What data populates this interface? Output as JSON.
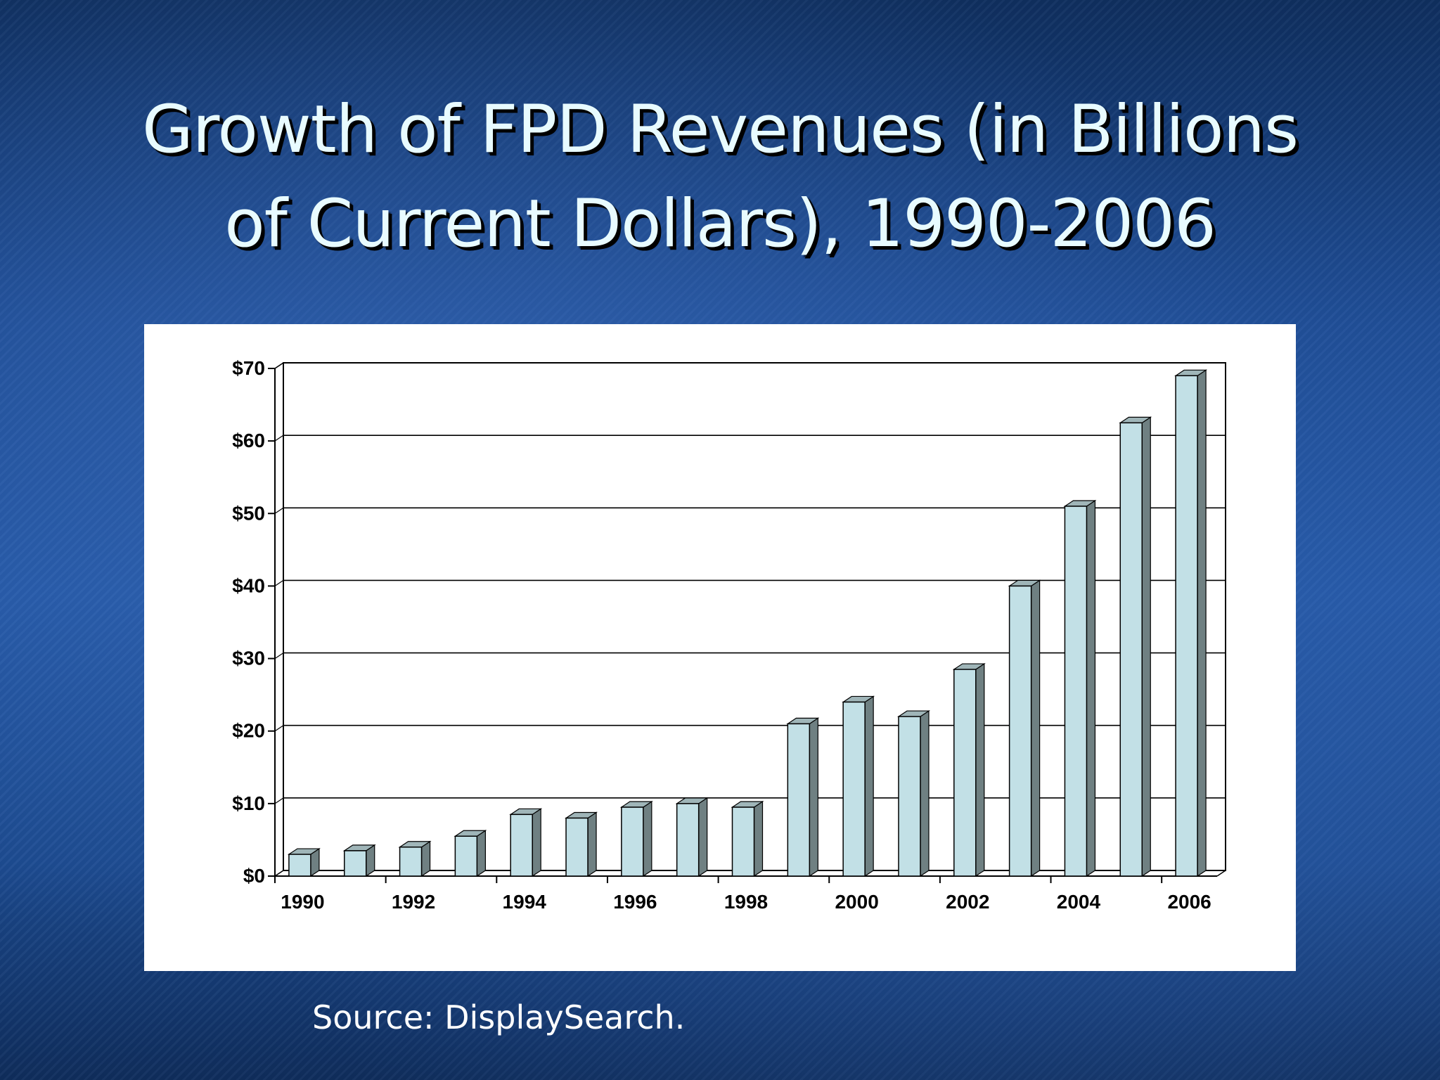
{
  "slide": {
    "title_line1": "Growth of FPD Revenues (in Billions",
    "title_line2": "of Current Dollars), 1990-2006",
    "source": "Source: DisplaySearch."
  },
  "colors": {
    "bar_front": "#c2e0e6",
    "bar_top": "#9fb5b8",
    "bar_side": "#6f8082",
    "title_text": "#e8fbff"
  },
  "chart_data": {
    "type": "bar",
    "categories": [
      "1990",
      "1991",
      "1992",
      "1993",
      "1994",
      "1995",
      "1996",
      "1997",
      "1998",
      "1999",
      "2000",
      "2001",
      "2002",
      "2003",
      "2004",
      "2005",
      "2006"
    ],
    "values": [
      3,
      3.5,
      4,
      5.5,
      8.5,
      8,
      9.5,
      10,
      9.5,
      21,
      24,
      22,
      28.5,
      40,
      51,
      62.5,
      69
    ],
    "x_tick_labels": [
      "1990",
      "1992",
      "1994",
      "1996",
      "1998",
      "2000",
      "2002",
      "2004",
      "2006"
    ],
    "y_tick_labels": [
      "$0",
      "$10",
      "$20",
      "$30",
      "$40",
      "$50",
      "$60",
      "$70"
    ],
    "ylim": [
      0,
      70
    ],
    "grid": true,
    "legend": "none"
  }
}
